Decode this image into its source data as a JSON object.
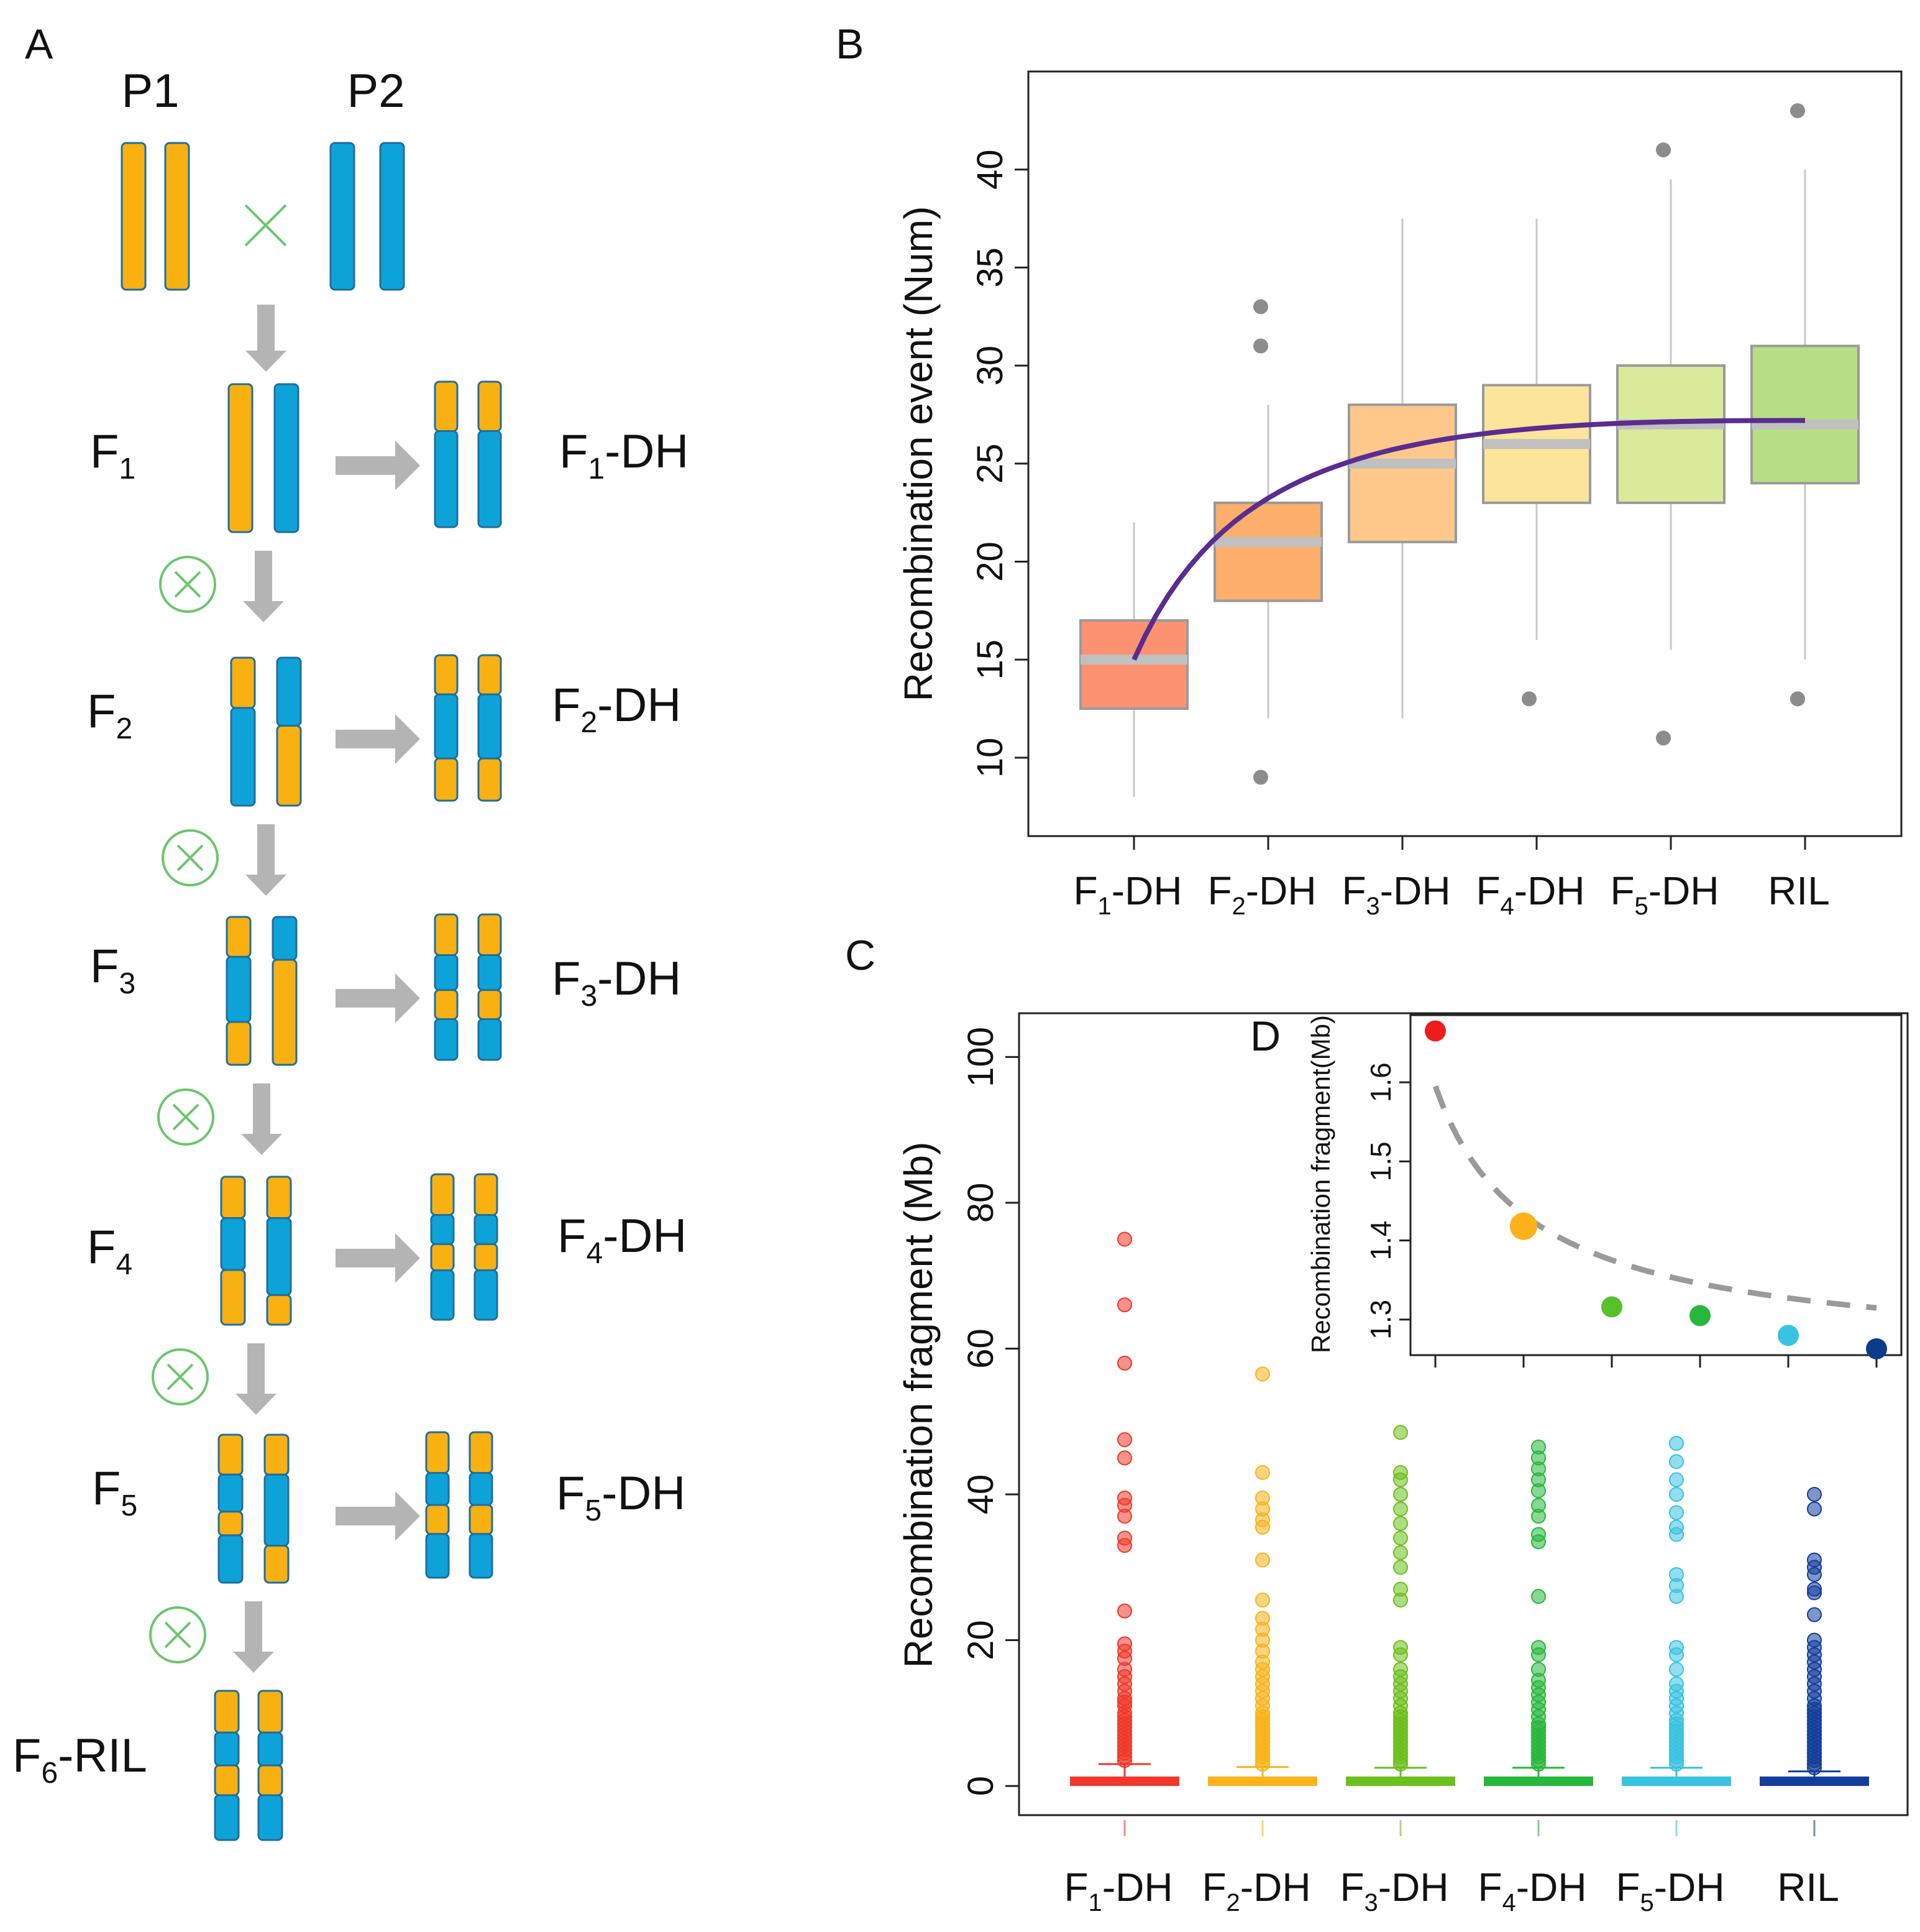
{
  "panel_labels": {
    "a": "A",
    "b": "B",
    "c": "C",
    "d": "D"
  },
  "colors": {
    "orange": "#f9b011",
    "blue": "#0ea3d8",
    "chrom_border": "#1d6f9e",
    "arrow": "#b4b4b4",
    "cross": "#6cc66d",
    "curve": "#5b2c91"
  },
  "panel_a": {
    "parents": [
      "P1",
      "P2"
    ],
    "cross_symbol": "×",
    "self_symbol": "⊗",
    "generations": [
      {
        "gen": "F",
        "sub": "1",
        "dh_gen": "F",
        "dh_sub": "1",
        "dh_suffix": "-DH"
      },
      {
        "gen": "F",
        "sub": "2",
        "dh_gen": "F",
        "dh_sub": "2",
        "dh_suffix": "-DH"
      },
      {
        "gen": "F",
        "sub": "3",
        "dh_gen": "F",
        "dh_sub": "3",
        "dh_suffix": "-DH"
      },
      {
        "gen": "F",
        "sub": "4",
        "dh_gen": "F",
        "dh_sub": "4",
        "dh_suffix": "-DH"
      },
      {
        "gen": "F",
        "sub": "5",
        "dh_gen": "F",
        "dh_sub": "5",
        "dh_suffix": "-DH"
      }
    ],
    "ril": {
      "gen": "F",
      "sub": "6",
      "suffix": "-RIL"
    }
  },
  "chart_data": [
    {
      "id": "B",
      "type": "box",
      "ylabel": "Recombination event (Num)",
      "ylim": [
        6,
        45
      ],
      "yticks": [
        10,
        15,
        20,
        25,
        30,
        35,
        40
      ],
      "categories": [
        {
          "main": "F",
          "sub": "1",
          "suffix": "-DH"
        },
        {
          "main": "F",
          "sub": "2",
          "suffix": "-DH"
        },
        {
          "main": "F",
          "sub": "3",
          "suffix": "-DH"
        },
        {
          "main": "F",
          "sub": "4",
          "suffix": "-DH"
        },
        {
          "main": "F",
          "sub": "5",
          "suffix": "-DH"
        },
        {
          "main": "RIL",
          "sub": "",
          "suffix": ""
        }
      ],
      "box_colors": [
        "#fc9272",
        "#fdae6b",
        "#fdc88a",
        "#fce49a",
        "#d9eb9a",
        "#b8de84"
      ],
      "boxes": [
        {
          "min": 8,
          "q1": 12.5,
          "median": 15,
          "q3": 17,
          "max": 22,
          "outliers": []
        },
        {
          "min": 12,
          "q1": 18,
          "median": 21,
          "q3": 23,
          "max": 28,
          "outliers": [
            9,
            31,
            33
          ]
        },
        {
          "min": 12,
          "q1": 21,
          "median": 25,
          "q3": 28,
          "max": 37.5,
          "outliers": []
        },
        {
          "min": 16,
          "q1": 23,
          "median": 26,
          "q3": 29,
          "max": 37.5,
          "outliers": [
            13
          ]
        },
        {
          "min": 15.5,
          "q1": 23,
          "median": 27,
          "q3": 30,
          "max": 39.5,
          "outliers": [
            11,
            41
          ]
        },
        {
          "min": 15,
          "q1": 24,
          "median": 27,
          "q3": 31,
          "max": 40,
          "outliers": [
            13,
            43
          ]
        }
      ],
      "trend": {
        "type": "log",
        "x": [
          1,
          2,
          3,
          4,
          5,
          6
        ],
        "y": [
          15,
          21.8,
          24.8,
          26.3,
          26.9,
          27.2
        ]
      }
    },
    {
      "id": "C",
      "type": "scatter",
      "ylabel": "Recombination fragment (Mb)",
      "ylim": [
        -4,
        106
      ],
      "yticks": [
        0,
        20,
        40,
        60,
        80,
        100
      ],
      "categories": [
        {
          "main": "F",
          "sub": "1",
          "suffix": "-DH"
        },
        {
          "main": "F",
          "sub": "2",
          "suffix": "-DH"
        },
        {
          "main": "F",
          "sub": "3",
          "suffix": "-DH"
        },
        {
          "main": "F",
          "sub": "4",
          "suffix": "-DH"
        },
        {
          "main": "F",
          "sub": "5",
          "suffix": "-DH"
        },
        {
          "main": "RIL",
          "sub": "",
          "suffix": ""
        }
      ],
      "colors": [
        "#f0382a",
        "#fbb21a",
        "#6cbf1c",
        "#27b73c",
        "#38c3e0",
        "#123e9a"
      ],
      "whisker": [
        3,
        2.6,
        2.5,
        2.5,
        2.5,
        2
      ],
      "series": [
        {
          "name": "F1-DH",
          "values": [
            75,
            66,
            58,
            47.5,
            45,
            39.5,
            38.5,
            37,
            34,
            33,
            24,
            19.5,
            18.5,
            17.5,
            16,
            15,
            14,
            13,
            12,
            11.5,
            11,
            10,
            9.5,
            9,
            8.5,
            8,
            7.5,
            7,
            6.5,
            6,
            5.5,
            5,
            4.5,
            4,
            3.5
          ]
        },
        {
          "name": "F2-DH",
          "values": [
            56.5,
            43,
            39.5,
            38,
            36.5,
            35.5,
            31,
            25.5,
            23,
            21.5,
            20,
            18.5,
            17,
            16,
            15,
            14,
            13,
            12,
            11,
            10,
            9.5,
            9,
            8.5,
            8,
            7.5,
            7,
            6.5,
            6,
            5.5,
            5,
            4.5,
            4,
            3.5,
            3
          ]
        },
        {
          "name": "F3-DH",
          "values": [
            48.5,
            43,
            42,
            40,
            38,
            36,
            34,
            32,
            30,
            27,
            25.5,
            19,
            18,
            16,
            15,
            14,
            13,
            12,
            11,
            10,
            9.5,
            9,
            8.5,
            8,
            7.5,
            7,
            6.5,
            6,
            5.5,
            5,
            4.5,
            4,
            3.5,
            3
          ]
        },
        {
          "name": "F4-DH",
          "values": [
            46.5,
            45,
            43.5,
            42,
            40.5,
            38.5,
            37,
            34.5,
            33.5,
            26,
            19,
            18,
            16,
            14.5,
            13.5,
            12.5,
            11.5,
            10.5,
            9.5,
            8.5,
            8,
            7.5,
            7,
            6.5,
            6,
            5.5,
            5,
            4.5,
            4,
            3.5,
            3
          ]
        },
        {
          "name": "F5-DH",
          "values": [
            47,
            44.5,
            42,
            40,
            37.5,
            35.5,
            34.5,
            29,
            27.5,
            26,
            19,
            18,
            16,
            14,
            13,
            12,
            11,
            10,
            9,
            8.5,
            8,
            7.5,
            7,
            6.5,
            6,
            5.5,
            5,
            4.5,
            4,
            3.5,
            3
          ]
        },
        {
          "name": "RIL",
          "values": [
            40,
            38,
            31,
            30,
            29,
            27,
            26.5,
            23.5,
            20,
            19,
            18,
            17,
            16,
            15,
            14,
            13,
            12,
            11,
            10.5,
            10,
            9.5,
            9,
            8.5,
            8,
            7.5,
            7,
            6.5,
            6,
            5.5,
            5,
            4.5,
            4,
            3.5,
            3,
            2.5
          ]
        }
      ]
    },
    {
      "id": "D",
      "type": "scatter",
      "ylabel": "Recombination fragment(Mb)",
      "xlim": [
        0.8,
        6.2
      ],
      "ylim": [
        1.255,
        1.685
      ],
      "yticks": [
        1.3,
        1.4,
        1.5,
        1.6
      ],
      "x": [
        1,
        2,
        3,
        4,
        5,
        6
      ],
      "y": [
        1.665,
        1.418,
        1.316,
        1.305,
        1.28,
        1.263
      ],
      "point_colors": [
        "#ee1c1c",
        "#fbb21a",
        "#57c02b",
        "#27b73c",
        "#38c3e0",
        "#0d3b8c"
      ],
      "point_sizes": [
        1,
        1.3,
        1,
        1,
        1,
        1
      ],
      "trend": {
        "type": "power",
        "dashed": true,
        "x_start": 1,
        "y_start": 1.595,
        "x_end": 6,
        "y_end": 1.26
      }
    }
  ]
}
